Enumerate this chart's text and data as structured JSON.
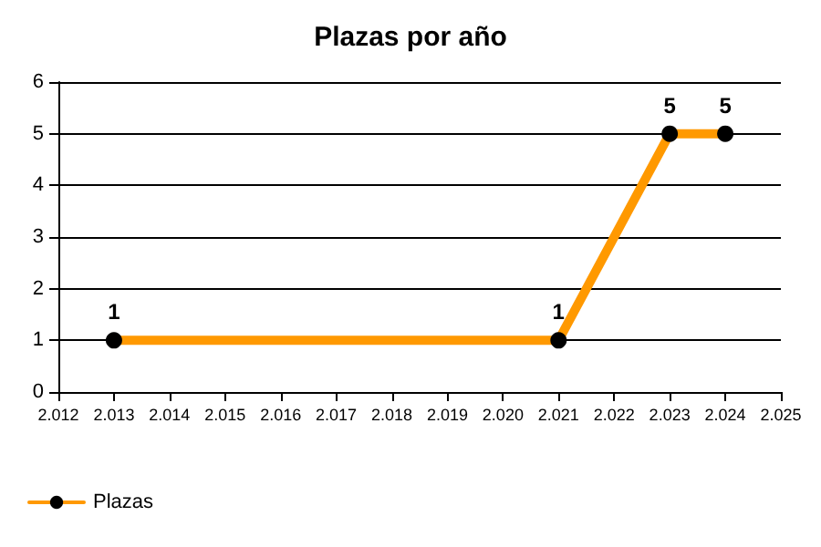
{
  "chart_data": {
    "type": "line",
    "title": "Plazas por año",
    "x": [
      2013,
      2021,
      2023,
      2024
    ],
    "series": [
      {
        "name": "Plazas",
        "color": "#ff9900",
        "values": [
          1,
          1,
          5,
          5
        ]
      }
    ],
    "xlim": [
      2012,
      2025
    ],
    "xticks": [
      {
        "value": 2012,
        "label": "2.012"
      },
      {
        "value": 2013,
        "label": "2.013"
      },
      {
        "value": 2014,
        "label": "2.014"
      },
      {
        "value": 2015,
        "label": "2.015"
      },
      {
        "value": 2016,
        "label": "2.016"
      },
      {
        "value": 2017,
        "label": "2.017"
      },
      {
        "value": 2018,
        "label": "2.018"
      },
      {
        "value": 2019,
        "label": "2.019"
      },
      {
        "value": 2020,
        "label": "2.020"
      },
      {
        "value": 2021,
        "label": "2.021"
      },
      {
        "value": 2022,
        "label": "2.022"
      },
      {
        "value": 2023,
        "label": "2.023"
      },
      {
        "value": 2024,
        "label": "2.024"
      },
      {
        "value": 2025,
        "label": "2.025"
      }
    ],
    "ylim": [
      0,
      6
    ],
    "yticks": [
      0,
      1,
      2,
      3,
      4,
      5,
      6
    ],
    "grid": "y",
    "legend": "bottom left",
    "marker": "circle",
    "line_style": "solid",
    "data_labels": true
  }
}
